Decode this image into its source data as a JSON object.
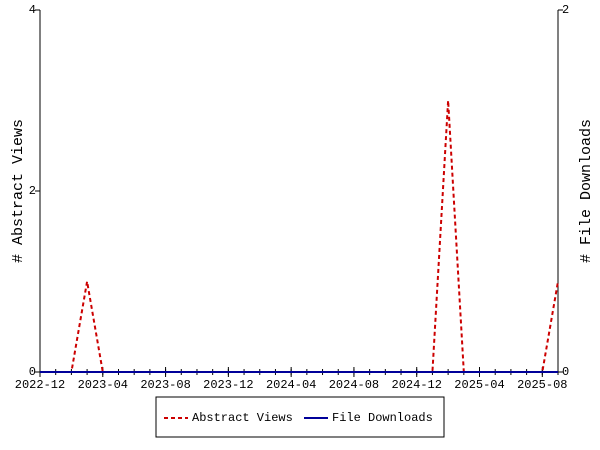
{
  "chart_data": {
    "type": "line",
    "x": [
      "2022-12",
      "2023-01",
      "2023-02",
      "2023-03",
      "2023-04",
      "2023-05",
      "2023-06",
      "2023-07",
      "2023-08",
      "2023-09",
      "2023-10",
      "2023-11",
      "2023-12",
      "2024-01",
      "2024-02",
      "2024-03",
      "2024-04",
      "2024-05",
      "2024-06",
      "2024-07",
      "2024-08",
      "2024-09",
      "2024-10",
      "2024-11",
      "2024-12",
      "2025-01",
      "2025-02",
      "2025-03",
      "2025-04",
      "2025-05",
      "2025-06",
      "2025-07",
      "2025-08",
      "2025-09"
    ],
    "xticks": [
      "2022-12",
      "2023-04",
      "2023-08",
      "2023-12",
      "2024-04",
      "2024-08",
      "2024-12",
      "2025-04",
      "2025-08"
    ],
    "ylabel": "# Abstract Views",
    "y2label": "# File Downloads",
    "ylim": [
      0,
      4
    ],
    "yticks": [
      0,
      2,
      4
    ],
    "y2lim": [
      0,
      2
    ],
    "y2ticks": [
      0,
      2
    ],
    "series": [
      {
        "name": "Abstract Views",
        "color": "#cc0000",
        "dash": true,
        "values": [
          0,
          0,
          0,
          1,
          0,
          0,
          0,
          0,
          0,
          0,
          0,
          0,
          0,
          0,
          0,
          0,
          0,
          0,
          0,
          0,
          0,
          0,
          0,
          0,
          0,
          0,
          3,
          0,
          0,
          0,
          0,
          0,
          0,
          1
        ]
      },
      {
        "name": "File Downloads",
        "color": "#000099",
        "axis": "y2",
        "values": [
          0,
          0,
          0,
          0,
          0,
          0,
          0,
          0,
          0,
          0,
          0,
          0,
          0,
          0,
          0,
          0,
          0,
          0,
          0,
          0,
          0,
          0,
          0,
          0,
          0,
          0,
          0,
          0,
          0,
          0,
          0,
          0,
          0,
          0
        ]
      }
    ],
    "legend": "bottom"
  }
}
